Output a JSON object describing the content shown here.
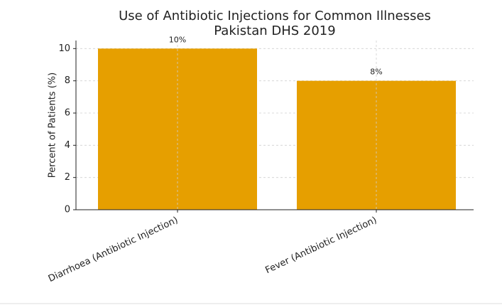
{
  "chart_data": {
    "type": "bar",
    "title": [
      "Use of Antibiotic Injections for Common Illnesses",
      "Pakistan DHS 2019"
    ],
    "y_label": "Percent of Patients (%)",
    "categories": [
      "Diarrhoea (Antibiotic Injection)",
      "Fever (Antibiotic Injection)"
    ],
    "values": [
      10,
      8
    ],
    "value_labels": [
      "10%",
      "8%"
    ],
    "color": "#e69f00",
    "ylim": [
      0,
      10.5
    ],
    "yticks": [
      0,
      2,
      4,
      6,
      8,
      10
    ],
    "grid": true
  }
}
